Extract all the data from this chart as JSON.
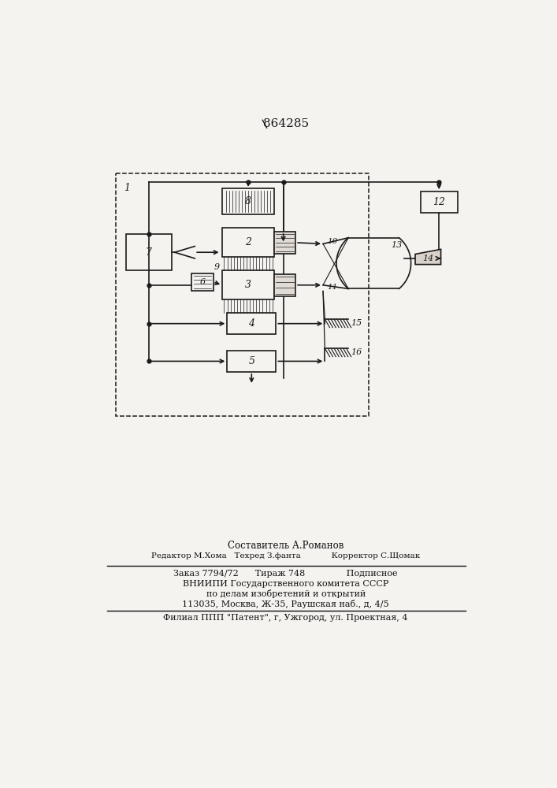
{
  "title": "864285",
  "bg_color": "#f5f3f0",
  "line_color": "#1a1a1a",
  "label_1": "1",
  "label_2": "2",
  "label_3": "3",
  "label_4": "4",
  "label_5": "5",
  "label_6": "6",
  "label_7": "7",
  "label_8": "8",
  "label_9": "9",
  "label_10": "10",
  "label_11": "11",
  "label_12": "12",
  "label_13": "13",
  "label_14": "14",
  "label_15": "15",
  "label_16": "16",
  "footer_line1": "Составитель А.Романов",
  "footer_line2": "Редактор М.Хома   Техред З.фанта            Корректор С.Щомак",
  "footer_line3": "Заказ 7794/72      Тираж 748               Подписное",
  "footer_line4": "ВНИИПИ Государственного комитета СССР",
  "footer_line5": "по делам изобретений и открытий",
  "footer_line6": "113035, Москва, Ж-35, Раушская наб., д, 4/5",
  "footer_line7": "Филиал ППП \"Патент\", г, Ужгород, ул. Проектная, 4"
}
